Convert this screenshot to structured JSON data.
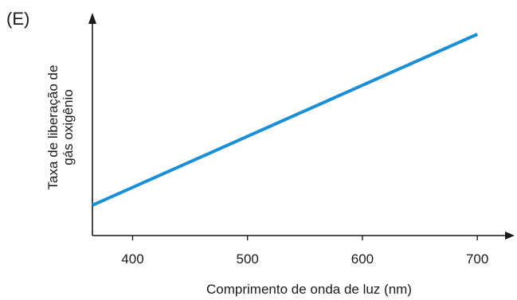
{
  "panel_label": "(E)",
  "colors": {
    "line": "#1a8fd6",
    "axis": "#1a1a1a"
  },
  "chart_data": {
    "type": "line",
    "title": "",
    "xlabel": "Comprimento de onda de luz (nm)",
    "ylabel_lines": [
      "Taxa de liberação de",
      "gás oxigênio"
    ],
    "xlim": [
      365,
      720
    ],
    "ylim": [
      0,
      1
    ],
    "x_ticks": [
      400,
      500,
      600,
      700
    ],
    "y_ticks": [],
    "grid": false,
    "legend": "none",
    "series": [
      {
        "x": [
          365,
          700
        ],
        "y": [
          0.14,
          0.93
        ]
      }
    ]
  }
}
